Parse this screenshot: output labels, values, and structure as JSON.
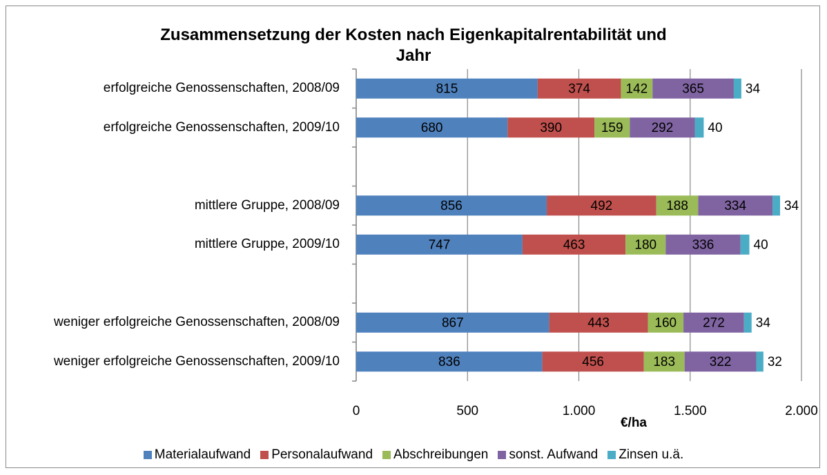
{
  "chart_data": {
    "type": "stacked_bar_horizontal",
    "title": "Zusammensetzung der Kosten nach Eigenkapitalrentabilität und Jahr",
    "x_label": "€/ha",
    "categories": [
      "erfolgreiche Genossenschaften, 2008/09",
      "erfolgreiche Genossenschaften, 2009/10",
      null,
      "mittlere Gruppe, 2008/09",
      "mittlere Gruppe, 2009/10",
      null,
      "weniger erfolgreiche Genossenschaften, 2008/09",
      "weniger erfolgreiche Genossenschaften, 2009/10"
    ],
    "series": [
      {
        "name": "Materialaufwand",
        "color": "#4f81bd",
        "values": [
          815,
          680,
          null,
          856,
          747,
          null,
          867,
          836
        ]
      },
      {
        "name": "Personalaufwand",
        "color": "#c0504d",
        "values": [
          374,
          390,
          null,
          492,
          463,
          null,
          443,
          456
        ]
      },
      {
        "name": "Abschreibungen",
        "color": "#9bbb59",
        "values": [
          142,
          159,
          null,
          188,
          180,
          null,
          160,
          183
        ]
      },
      {
        "name": "sonst. Aufwand",
        "color": "#8064a2",
        "values": [
          365,
          292,
          null,
          334,
          336,
          null,
          272,
          322
        ]
      },
      {
        "name": "Zinsen u.ä.",
        "color": "#4bacc6",
        "values": [
          34,
          40,
          null,
          34,
          40,
          null,
          34,
          32
        ]
      }
    ],
    "xlim": [
      0,
      2000
    ],
    "xticks": [
      0,
      500,
      {
        "value": 1000,
        "label": "1.000"
      },
      {
        "value": 1500,
        "label": "1.500"
      },
      {
        "value": 2000,
        "label": "2.000"
      }
    ],
    "grid": true,
    "legend": "bottom"
  }
}
